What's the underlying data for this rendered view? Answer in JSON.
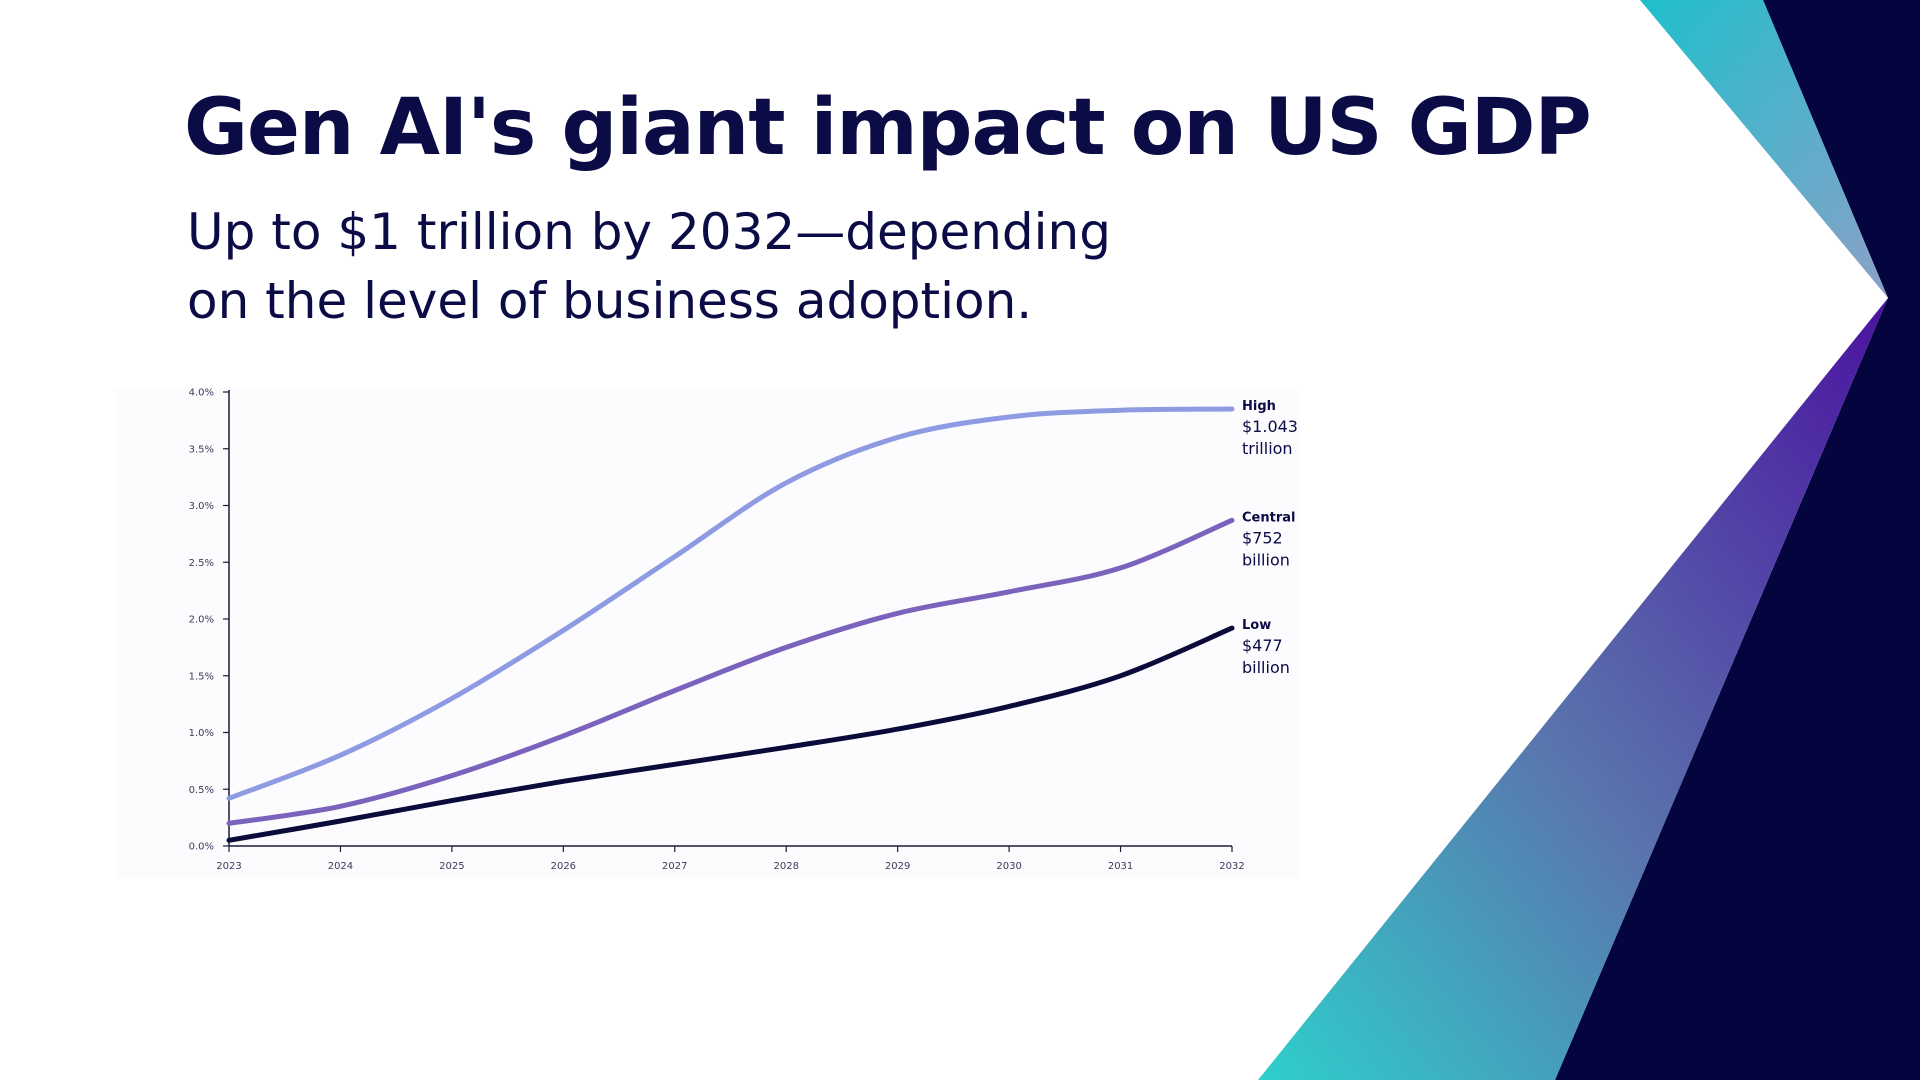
{
  "slide": {
    "title": "Gen AI's giant impact on US GDP",
    "subtitle_line1": "Up to $1 trillion by 2032—depending",
    "subtitle_line2": "on the level of business adoption."
  },
  "colors": {
    "text": "#0b0b45",
    "navy": "#04043f",
    "teal": "#22c6c9",
    "purple": "#4a1a98",
    "high": "#8e9be3",
    "central": "#7a62bd",
    "low": "#0b0b3b"
  },
  "chart_data": {
    "type": "line",
    "title": "",
    "xlabel": "",
    "ylabel": "",
    "x": [
      2023,
      2024,
      2025,
      2026,
      2027,
      2028,
      2029,
      2030,
      2031,
      2032
    ],
    "x_tick_labels": [
      "2023",
      "2024",
      "2025",
      "2026",
      "2027",
      "2028",
      "2029",
      "2030",
      "2031",
      "2032"
    ],
    "y_ticks": [
      0,
      0.5,
      1.0,
      1.5,
      2.0,
      2.5,
      3.0,
      3.5,
      4.0
    ],
    "y_tick_labels": [
      "0.0%",
      "0.5%",
      "1.0%",
      "1.5%",
      "2.0%",
      "2.5%",
      "3.0%",
      "3.5%",
      "4.0%"
    ],
    "ylim": [
      0,
      4.0
    ],
    "xlim": [
      2023,
      2032
    ],
    "grid": false,
    "legend": "end-of-line labels",
    "series": [
      {
        "name": "High",
        "label_line1": "$1.043",
        "label_line2": "trillion",
        "color": "#8e9be3",
        "values": [
          0.42,
          0.8,
          1.3,
          1.9,
          2.55,
          3.2,
          3.6,
          3.78,
          3.84,
          3.85
        ]
      },
      {
        "name": "Central",
        "label_line1": "$752",
        "label_line2": "billion",
        "color": "#7a62bd",
        "values": [
          0.2,
          0.35,
          0.62,
          0.97,
          1.37,
          1.75,
          2.05,
          2.24,
          2.45,
          2.87
        ]
      },
      {
        "name": "Low",
        "label_line1": "$477",
        "label_line2": "billion",
        "color": "#0b0b3b",
        "values": [
          0.05,
          0.22,
          0.4,
          0.57,
          0.72,
          0.87,
          1.03,
          1.23,
          1.5,
          1.92
        ]
      }
    ]
  }
}
